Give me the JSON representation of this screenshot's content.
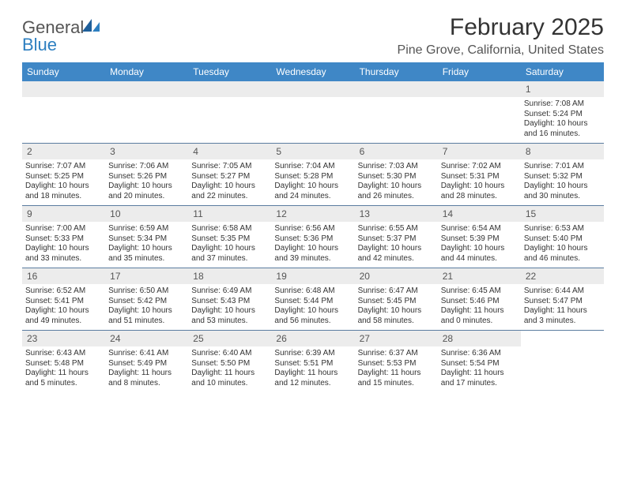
{
  "logo": {
    "word1": "General",
    "word2": "Blue"
  },
  "title": "February 2025",
  "location": "Pine Grove, California, United States",
  "colors": {
    "header_bg": "#3f87c6",
    "header_text": "#ffffff",
    "daynum_bg": "#ececec",
    "week_border": "#5a7ca0",
    "body_text": "#333333"
  },
  "day_names": [
    "Sunday",
    "Monday",
    "Tuesday",
    "Wednesday",
    "Thursday",
    "Friday",
    "Saturday"
  ],
  "weeks": [
    [
      {
        "blank": true
      },
      {
        "blank": true
      },
      {
        "blank": true
      },
      {
        "blank": true
      },
      {
        "blank": true
      },
      {
        "blank": true
      },
      {
        "day": "1",
        "sunrise": "Sunrise: 7:08 AM",
        "sunset": "Sunset: 5:24 PM",
        "daylight1": "Daylight: 10 hours",
        "daylight2": "and 16 minutes."
      }
    ],
    [
      {
        "day": "2",
        "sunrise": "Sunrise: 7:07 AM",
        "sunset": "Sunset: 5:25 PM",
        "daylight1": "Daylight: 10 hours",
        "daylight2": "and 18 minutes."
      },
      {
        "day": "3",
        "sunrise": "Sunrise: 7:06 AM",
        "sunset": "Sunset: 5:26 PM",
        "daylight1": "Daylight: 10 hours",
        "daylight2": "and 20 minutes."
      },
      {
        "day": "4",
        "sunrise": "Sunrise: 7:05 AM",
        "sunset": "Sunset: 5:27 PM",
        "daylight1": "Daylight: 10 hours",
        "daylight2": "and 22 minutes."
      },
      {
        "day": "5",
        "sunrise": "Sunrise: 7:04 AM",
        "sunset": "Sunset: 5:28 PM",
        "daylight1": "Daylight: 10 hours",
        "daylight2": "and 24 minutes."
      },
      {
        "day": "6",
        "sunrise": "Sunrise: 7:03 AM",
        "sunset": "Sunset: 5:30 PM",
        "daylight1": "Daylight: 10 hours",
        "daylight2": "and 26 minutes."
      },
      {
        "day": "7",
        "sunrise": "Sunrise: 7:02 AM",
        "sunset": "Sunset: 5:31 PM",
        "daylight1": "Daylight: 10 hours",
        "daylight2": "and 28 minutes."
      },
      {
        "day": "8",
        "sunrise": "Sunrise: 7:01 AM",
        "sunset": "Sunset: 5:32 PM",
        "daylight1": "Daylight: 10 hours",
        "daylight2": "and 30 minutes."
      }
    ],
    [
      {
        "day": "9",
        "sunrise": "Sunrise: 7:00 AM",
        "sunset": "Sunset: 5:33 PM",
        "daylight1": "Daylight: 10 hours",
        "daylight2": "and 33 minutes."
      },
      {
        "day": "10",
        "sunrise": "Sunrise: 6:59 AM",
        "sunset": "Sunset: 5:34 PM",
        "daylight1": "Daylight: 10 hours",
        "daylight2": "and 35 minutes."
      },
      {
        "day": "11",
        "sunrise": "Sunrise: 6:58 AM",
        "sunset": "Sunset: 5:35 PM",
        "daylight1": "Daylight: 10 hours",
        "daylight2": "and 37 minutes."
      },
      {
        "day": "12",
        "sunrise": "Sunrise: 6:56 AM",
        "sunset": "Sunset: 5:36 PM",
        "daylight1": "Daylight: 10 hours",
        "daylight2": "and 39 minutes."
      },
      {
        "day": "13",
        "sunrise": "Sunrise: 6:55 AM",
        "sunset": "Sunset: 5:37 PM",
        "daylight1": "Daylight: 10 hours",
        "daylight2": "and 42 minutes."
      },
      {
        "day": "14",
        "sunrise": "Sunrise: 6:54 AM",
        "sunset": "Sunset: 5:39 PM",
        "daylight1": "Daylight: 10 hours",
        "daylight2": "and 44 minutes."
      },
      {
        "day": "15",
        "sunrise": "Sunrise: 6:53 AM",
        "sunset": "Sunset: 5:40 PM",
        "daylight1": "Daylight: 10 hours",
        "daylight2": "and 46 minutes."
      }
    ],
    [
      {
        "day": "16",
        "sunrise": "Sunrise: 6:52 AM",
        "sunset": "Sunset: 5:41 PM",
        "daylight1": "Daylight: 10 hours",
        "daylight2": "and 49 minutes."
      },
      {
        "day": "17",
        "sunrise": "Sunrise: 6:50 AM",
        "sunset": "Sunset: 5:42 PM",
        "daylight1": "Daylight: 10 hours",
        "daylight2": "and 51 minutes."
      },
      {
        "day": "18",
        "sunrise": "Sunrise: 6:49 AM",
        "sunset": "Sunset: 5:43 PM",
        "daylight1": "Daylight: 10 hours",
        "daylight2": "and 53 minutes."
      },
      {
        "day": "19",
        "sunrise": "Sunrise: 6:48 AM",
        "sunset": "Sunset: 5:44 PM",
        "daylight1": "Daylight: 10 hours",
        "daylight2": "and 56 minutes."
      },
      {
        "day": "20",
        "sunrise": "Sunrise: 6:47 AM",
        "sunset": "Sunset: 5:45 PM",
        "daylight1": "Daylight: 10 hours",
        "daylight2": "and 58 minutes."
      },
      {
        "day": "21",
        "sunrise": "Sunrise: 6:45 AM",
        "sunset": "Sunset: 5:46 PM",
        "daylight1": "Daylight: 11 hours",
        "daylight2": "and 0 minutes."
      },
      {
        "day": "22",
        "sunrise": "Sunrise: 6:44 AM",
        "sunset": "Sunset: 5:47 PM",
        "daylight1": "Daylight: 11 hours",
        "daylight2": "and 3 minutes."
      }
    ],
    [
      {
        "day": "23",
        "sunrise": "Sunrise: 6:43 AM",
        "sunset": "Sunset: 5:48 PM",
        "daylight1": "Daylight: 11 hours",
        "daylight2": "and 5 minutes."
      },
      {
        "day": "24",
        "sunrise": "Sunrise: 6:41 AM",
        "sunset": "Sunset: 5:49 PM",
        "daylight1": "Daylight: 11 hours",
        "daylight2": "and 8 minutes."
      },
      {
        "day": "25",
        "sunrise": "Sunrise: 6:40 AM",
        "sunset": "Sunset: 5:50 PM",
        "daylight1": "Daylight: 11 hours",
        "daylight2": "and 10 minutes."
      },
      {
        "day": "26",
        "sunrise": "Sunrise: 6:39 AM",
        "sunset": "Sunset: 5:51 PM",
        "daylight1": "Daylight: 11 hours",
        "daylight2": "and 12 minutes."
      },
      {
        "day": "27",
        "sunrise": "Sunrise: 6:37 AM",
        "sunset": "Sunset: 5:53 PM",
        "daylight1": "Daylight: 11 hours",
        "daylight2": "and 15 minutes."
      },
      {
        "day": "28",
        "sunrise": "Sunrise: 6:36 AM",
        "sunset": "Sunset: 5:54 PM",
        "daylight1": "Daylight: 11 hours",
        "daylight2": "and 17 minutes."
      },
      {
        "blank": true,
        "noshade": true
      }
    ]
  ]
}
